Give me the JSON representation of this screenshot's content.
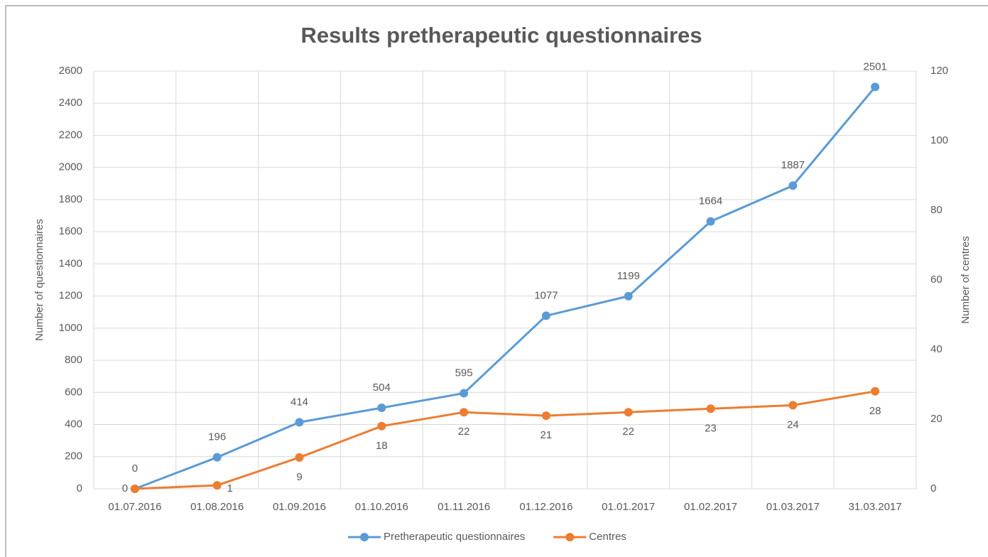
{
  "chart_data": {
    "type": "line",
    "title": "Results pretherapeutic questionnaires",
    "categories": [
      "01.07.2016",
      "01.08.2016",
      "01.09.2016",
      "01.10.2016",
      "01.11.2016",
      "01.12.2016",
      "01.01.2017",
      "01.02.2017",
      "01.03.2017",
      "31.03.2017"
    ],
    "series": [
      {
        "name": "Pretherapeutic questionnaires",
        "color": "#5b9bd5",
        "values": [
          0,
          196,
          414,
          504,
          595,
          1077,
          1199,
          1664,
          1887,
          2501
        ]
      },
      {
        "name": "Centres",
        "color": "#ed7d31",
        "axis": "y2",
        "values": [
          0,
          1,
          9,
          18,
          22,
          21,
          22,
          23,
          24,
          28
        ]
      }
    ],
    "y_label": "Number of questionnaires",
    "y2_label": "Number of centres",
    "ylim": [
      0,
      2600
    ],
    "yticks": [
      0,
      200,
      400,
      600,
      800,
      1000,
      1200,
      1400,
      1600,
      1800,
      2000,
      2200,
      2400,
      2600
    ],
    "y2lim": [
      0,
      120
    ],
    "y2ticks": [
      0,
      20,
      40,
      60,
      80,
      100,
      120
    ],
    "grid": true,
    "legend": "bottom"
  }
}
